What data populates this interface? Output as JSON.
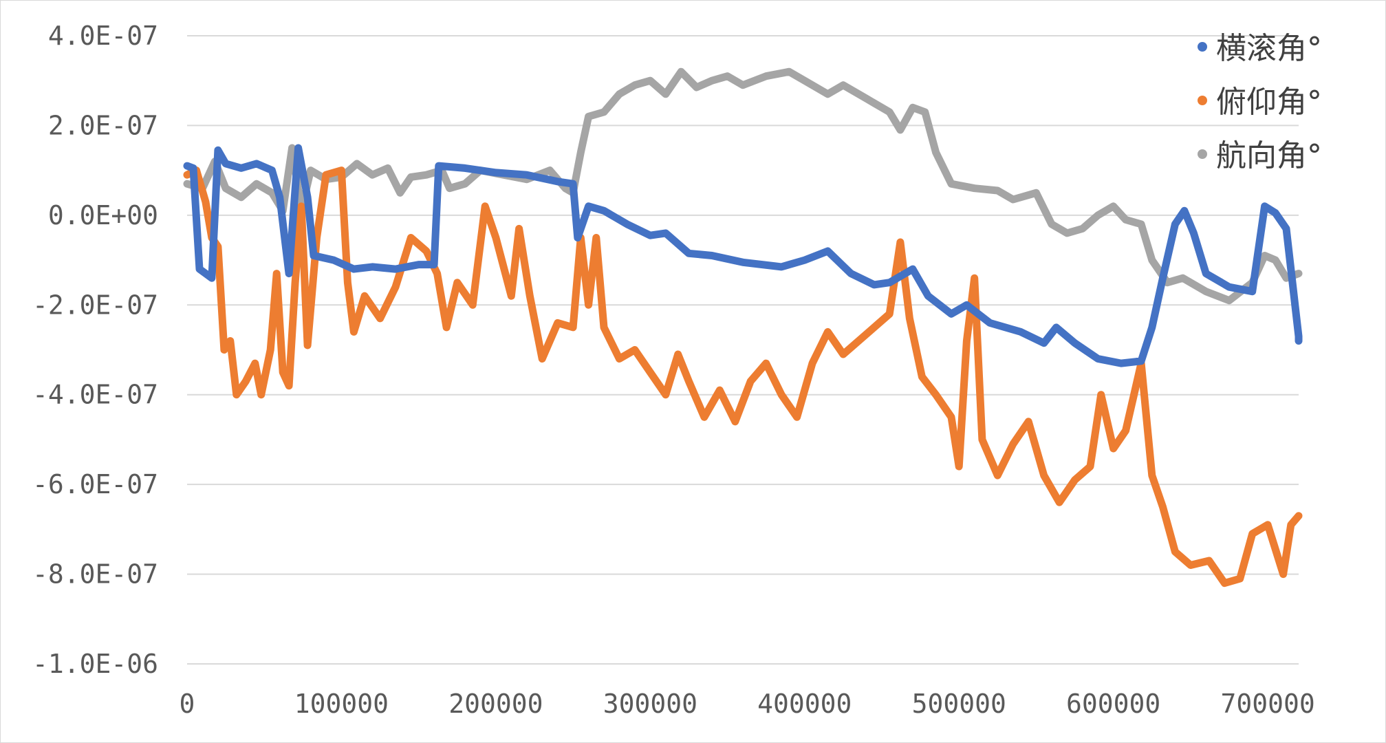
{
  "chart_data": {
    "type": "line",
    "title": "",
    "xlabel": "",
    "ylabel": "",
    "xlim": [
      0,
      720000
    ],
    "ylim": [
      -1e-06,
      4e-07
    ],
    "x_ticks": [
      0,
      100000,
      200000,
      300000,
      400000,
      500000,
      600000,
      700000
    ],
    "x_tick_labels": [
      "0",
      "100000",
      "200000",
      "300000",
      "400000",
      "500000",
      "600000",
      "700000"
    ],
    "y_ticks": [
      4e-07,
      2e-07,
      0,
      -2e-07,
      -4e-07,
      -6e-07,
      -8e-07,
      -1e-06
    ],
    "y_tick_labels": [
      "4.0E-07",
      "2.0E-07",
      "0.0E+00",
      "-2.0E-07",
      "-4.0E-07",
      "-6.0E-07",
      "-8.0E-07",
      "-1.0E-06"
    ],
    "grid": true,
    "legend_position": "top-right",
    "series": [
      {
        "name": "横滚角°",
        "color": "#4472C4",
        "points": [
          [
            0,
            1.1e-07
          ],
          [
            4000,
            1.05e-07
          ],
          [
            8000,
            -1.2e-07
          ],
          [
            12000,
            -1.3e-07
          ],
          [
            16000,
            -1.4e-07
          ],
          [
            20000,
            1.45e-07
          ],
          [
            25000,
            1.15e-07
          ],
          [
            35000,
            1.05e-07
          ],
          [
            45000,
            1.15e-07
          ],
          [
            55000,
            1e-07
          ],
          [
            60000,
            4e-08
          ],
          [
            66000,
            -1.3e-07
          ],
          [
            72000,
            1.5e-07
          ],
          [
            78000,
            4e-08
          ],
          [
            82000,
            -9e-08
          ],
          [
            95000,
            -1e-07
          ],
          [
            108000,
            -1.2e-07
          ],
          [
            120000,
            -1.15e-07
          ],
          [
            135000,
            -1.2e-07
          ],
          [
            150000,
            -1.1e-07
          ],
          [
            160000,
            -1.1e-07
          ],
          [
            163000,
            1.1e-07
          ],
          [
            180000,
            1.05e-07
          ],
          [
            200000,
            9.5e-08
          ],
          [
            220000,
            9e-08
          ],
          [
            240000,
            7.5e-08
          ],
          [
            250000,
            7e-08
          ],
          [
            253000,
            -5e-08
          ],
          [
            260000,
            2e-08
          ],
          [
            270000,
            1e-08
          ],
          [
            285000,
            -2e-08
          ],
          [
            300000,
            -4.5e-08
          ],
          [
            310000,
            -4e-08
          ],
          [
            325000,
            -8.5e-08
          ],
          [
            340000,
            -9e-08
          ],
          [
            360000,
            -1.05e-07
          ],
          [
            385000,
            -1.15e-07
          ],
          [
            400000,
            -1e-07
          ],
          [
            415000,
            -8e-08
          ],
          [
            430000,
            -1.3e-07
          ],
          [
            445000,
            -1.55e-07
          ],
          [
            455000,
            -1.5e-07
          ],
          [
            470000,
            -1.2e-07
          ],
          [
            480000,
            -1.8e-07
          ],
          [
            495000,
            -2.2e-07
          ],
          [
            505000,
            -2e-07
          ],
          [
            520000,
            -2.4e-07
          ],
          [
            540000,
            -2.6e-07
          ],
          [
            555000,
            -2.85e-07
          ],
          [
            563000,
            -2.5e-07
          ],
          [
            575000,
            -2.85e-07
          ],
          [
            590000,
            -3.2e-07
          ],
          [
            605000,
            -3.3e-07
          ],
          [
            618000,
            -3.25e-07
          ],
          [
            625000,
            -2.5e-07
          ],
          [
            632000,
            -1.4e-07
          ],
          [
            640000,
            -2e-08
          ],
          [
            646000,
            1e-08
          ],
          [
            652000,
            -4e-08
          ],
          [
            660000,
            -1.3e-07
          ],
          [
            675000,
            -1.6e-07
          ],
          [
            690000,
            -1.7e-07
          ],
          [
            698000,
            2e-08
          ],
          [
            705000,
            5e-09
          ],
          [
            712000,
            -3e-08
          ],
          [
            720000,
            -2.7e-07
          ],
          [
            720000,
            -2.8e-07
          ]
        ]
      },
      {
        "name": "俯仰角°",
        "color": "#ED7D31",
        "points": [
          [
            0,
            9e-08
          ],
          [
            6000,
            1e-07
          ],
          [
            12000,
            3e-08
          ],
          [
            16000,
            -5e-08
          ],
          [
            20000,
            -7e-08
          ],
          [
            24000,
            -3e-07
          ],
          [
            28000,
            -2.8e-07
          ],
          [
            32000,
            -4e-07
          ],
          [
            38000,
            -3.7e-07
          ],
          [
            44000,
            -3.3e-07
          ],
          [
            48000,
            -4e-07
          ],
          [
            54000,
            -3e-07
          ],
          [
            58000,
            -1.3e-07
          ],
          [
            62000,
            -3.5e-07
          ],
          [
            66000,
            -3.8e-07
          ],
          [
            70000,
            -1.5e-07
          ],
          [
            74000,
            2e-08
          ],
          [
            78000,
            -2.9e-07
          ],
          [
            84000,
            -5e-08
          ],
          [
            90000,
            9e-08
          ],
          [
            100000,
            1e-07
          ],
          [
            104000,
            -1.5e-07
          ],
          [
            108000,
            -2.6e-07
          ],
          [
            115000,
            -1.8e-07
          ],
          [
            125000,
            -2.3e-07
          ],
          [
            135000,
            -1.6e-07
          ],
          [
            145000,
            -5e-08
          ],
          [
            155000,
            -8e-08
          ],
          [
            162000,
            -1.3e-07
          ],
          [
            168000,
            -2.5e-07
          ],
          [
            175000,
            -1.5e-07
          ],
          [
            185000,
            -2e-07
          ],
          [
            193000,
            2e-08
          ],
          [
            200000,
            -5e-08
          ],
          [
            210000,
            -1.8e-07
          ],
          [
            215000,
            -3e-08
          ],
          [
            222000,
            -1.8e-07
          ],
          [
            230000,
            -3.2e-07
          ],
          [
            240000,
            -2.4e-07
          ],
          [
            250000,
            -2.5e-07
          ],
          [
            255000,
            -5e-08
          ],
          [
            260000,
            -2e-07
          ],
          [
            265000,
            -5e-08
          ],
          [
            270000,
            -2.5e-07
          ],
          [
            280000,
            -3.2e-07
          ],
          [
            290000,
            -3e-07
          ],
          [
            300000,
            -3.5e-07
          ],
          [
            310000,
            -4e-07
          ],
          [
            318000,
            -3.1e-07
          ],
          [
            325000,
            -3.7e-07
          ],
          [
            335000,
            -4.5e-07
          ],
          [
            345000,
            -3.9e-07
          ],
          [
            355000,
            -4.6e-07
          ],
          [
            365000,
            -3.7e-07
          ],
          [
            375000,
            -3.3e-07
          ],
          [
            385000,
            -4e-07
          ],
          [
            395000,
            -4.5e-07
          ],
          [
            405000,
            -3.3e-07
          ],
          [
            415000,
            -2.6e-07
          ],
          [
            425000,
            -3.1e-07
          ],
          [
            435000,
            -2.8e-07
          ],
          [
            445000,
            -2.5e-07
          ],
          [
            455000,
            -2.2e-07
          ],
          [
            462000,
            -6e-08
          ],
          [
            468000,
            -2.3e-07
          ],
          [
            476000,
            -3.6e-07
          ],
          [
            485000,
            -4e-07
          ],
          [
            495000,
            -4.5e-07
          ],
          [
            500000,
            -5.6e-07
          ],
          [
            505000,
            -2.8e-07
          ],
          [
            510000,
            -1.4e-07
          ],
          [
            515000,
            -5e-07
          ],
          [
            525000,
            -5.8e-07
          ],
          [
            535000,
            -5.1e-07
          ],
          [
            545000,
            -4.6e-07
          ],
          [
            555000,
            -5.8e-07
          ],
          [
            565000,
            -6.4e-07
          ],
          [
            575000,
            -5.9e-07
          ],
          [
            585000,
            -5.6e-07
          ],
          [
            592000,
            -4e-07
          ],
          [
            600000,
            -5.2e-07
          ],
          [
            608000,
            -4.8e-07
          ],
          [
            618000,
            -3.3e-07
          ],
          [
            625000,
            -5.8e-07
          ],
          [
            632000,
            -6.5e-07
          ],
          [
            640000,
            -7.5e-07
          ],
          [
            650000,
            -7.8e-07
          ],
          [
            662000,
            -7.7e-07
          ],
          [
            672000,
            -8.2e-07
          ],
          [
            682000,
            -8.1e-07
          ],
          [
            690000,
            -7.1e-07
          ],
          [
            700000,
            -6.9e-07
          ],
          [
            710000,
            -8e-07
          ],
          [
            715000,
            -6.9e-07
          ],
          [
            720000,
            -6.7e-07
          ]
        ]
      },
      {
        "name": "航向角°",
        "color": "#A5A5A5",
        "points": [
          [
            0,
            7e-08
          ],
          [
            10000,
            6e-08
          ],
          [
            18000,
            1.2e-07
          ],
          [
            25000,
            6e-08
          ],
          [
            35000,
            4e-08
          ],
          [
            45000,
            7e-08
          ],
          [
            55000,
            5e-08
          ],
          [
            62000,
            1e-08
          ],
          [
            68000,
            1.5e-07
          ],
          [
            74000,
            1e-08
          ],
          [
            80000,
            1e-07
          ],
          [
            90000,
            8e-08
          ],
          [
            100000,
            8.5e-08
          ],
          [
            110000,
            1.15e-07
          ],
          [
            120000,
            9e-08
          ],
          [
            130000,
            1.05e-07
          ],
          [
            138000,
            5e-08
          ],
          [
            145000,
            8.5e-08
          ],
          [
            155000,
            9e-08
          ],
          [
            165000,
            1e-07
          ],
          [
            170000,
            6e-08
          ],
          [
            180000,
            7e-08
          ],
          [
            190000,
            1e-07
          ],
          [
            205000,
            9e-08
          ],
          [
            220000,
            8e-08
          ],
          [
            235000,
            1e-07
          ],
          [
            245000,
            6e-08
          ],
          [
            250000,
            5e-08
          ],
          [
            255000,
            1.4e-07
          ],
          [
            260000,
            2.2e-07
          ],
          [
            270000,
            2.3e-07
          ],
          [
            280000,
            2.7e-07
          ],
          [
            290000,
            2.9e-07
          ],
          [
            300000,
            3e-07
          ],
          [
            310000,
            2.7e-07
          ],
          [
            320000,
            3.2e-07
          ],
          [
            330000,
            2.85e-07
          ],
          [
            340000,
            3e-07
          ],
          [
            350000,
            3.1e-07
          ],
          [
            360000,
            2.9e-07
          ],
          [
            375000,
            3.1e-07
          ],
          [
            390000,
            3.2e-07
          ],
          [
            400000,
            3e-07
          ],
          [
            415000,
            2.7e-07
          ],
          [
            425000,
            2.9e-07
          ],
          [
            440000,
            2.6e-07
          ],
          [
            455000,
            2.3e-07
          ],
          [
            462000,
            1.9e-07
          ],
          [
            470000,
            2.4e-07
          ],
          [
            478000,
            2.3e-07
          ],
          [
            485000,
            1.4e-07
          ],
          [
            495000,
            7e-08
          ],
          [
            510000,
            6e-08
          ],
          [
            525000,
            5.5e-08
          ],
          [
            535000,
            3.5e-08
          ],
          [
            550000,
            5e-08
          ],
          [
            560000,
            -2e-08
          ],
          [
            570000,
            -4e-08
          ],
          [
            580000,
            -3e-08
          ],
          [
            590000,
            0.0
          ],
          [
            600000,
            2e-08
          ],
          [
            608000,
            -1e-08
          ],
          [
            618000,
            -2e-08
          ],
          [
            625000,
            -1e-07
          ],
          [
            635000,
            -1.5e-07
          ],
          [
            645000,
            -1.4e-07
          ],
          [
            660000,
            -1.7e-07
          ],
          [
            675000,
            -1.9e-07
          ],
          [
            690000,
            -1.5e-07
          ],
          [
            698000,
            -9e-08
          ],
          [
            705000,
            -1e-07
          ],
          [
            712000,
            -1.4e-07
          ],
          [
            720000,
            -1.3e-07
          ]
        ]
      }
    ]
  }
}
